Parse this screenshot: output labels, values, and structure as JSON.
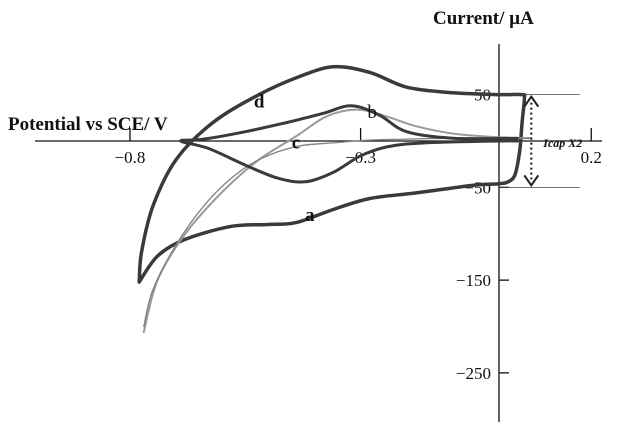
{
  "chart_data": {
    "type": "line",
    "title": "",
    "xlabel": "Potential vs SCE/ V",
    "ylabel": "Current/ µA",
    "xlim": [
      -0.8,
      0.2
    ],
    "ylim": [
      -250,
      100
    ],
    "x_ticks": [
      {
        "value": -0.8,
        "label": "−0.8"
      },
      {
        "value": -0.3,
        "label": "−0.3"
      },
      {
        "value": 0.2,
        "label": "0.2"
      }
    ],
    "y_ticks": [
      {
        "value": 50,
        "label": "50"
      },
      {
        "value": -50,
        "label": "−50"
      },
      {
        "value": -150,
        "label": "−150"
      },
      {
        "value": -250,
        "label": "−250"
      }
    ],
    "grid": false,
    "annotation": {
      "text": "Icap X2",
      "y_from": 50,
      "y_to": -50,
      "x": 0.07
    },
    "series": [
      {
        "name": "a",
        "label_at": [
          -0.41,
          -86
        ],
        "color": "#3a3a3a",
        "width": 3.5,
        "points": [
          [
            -0.78,
            -152
          ],
          [
            -0.74,
            -124
          ],
          [
            -0.68,
            -106
          ],
          [
            -0.58,
            -92
          ],
          [
            -0.5,
            -90
          ],
          [
            -0.44,
            -88
          ],
          [
            -0.36,
            -74
          ],
          [
            -0.28,
            -62
          ],
          [
            -0.18,
            -56
          ],
          [
            -0.06,
            -48
          ],
          [
            0.0,
            -46
          ],
          [
            0.02,
            -44
          ],
          [
            0.035,
            -36
          ],
          [
            0.045,
            -10
          ],
          [
            0.05,
            20
          ],
          [
            0.055,
            46
          ],
          [
            0.05,
            50
          ],
          [
            0.0,
            50
          ],
          [
            -0.1,
            52
          ],
          [
            -0.2,
            58
          ],
          [
            -0.28,
            74
          ],
          [
            -0.36,
            80
          ],
          [
            -0.44,
            68
          ],
          [
            -0.52,
            50
          ],
          [
            -0.62,
            20
          ],
          [
            -0.7,
            -20
          ],
          [
            -0.75,
            -70
          ],
          [
            -0.775,
            -120
          ],
          [
            -0.78,
            -152
          ]
        ]
      },
      {
        "name": "b",
        "label_at": [
          -0.275,
          25
        ],
        "color": "#9a9a9a",
        "width": 2,
        "points": [
          [
            -0.77,
            -206
          ],
          [
            -0.74,
            -150
          ],
          [
            -0.68,
            -100
          ],
          [
            -0.6,
            -55
          ],
          [
            -0.52,
            -20
          ],
          [
            -0.44,
            5
          ],
          [
            -0.38,
            25
          ],
          [
            -0.33,
            33
          ],
          [
            -0.29,
            33
          ],
          [
            -0.24,
            26
          ],
          [
            -0.18,
            16
          ],
          [
            -0.1,
            8
          ],
          [
            0.0,
            4
          ],
          [
            0.07,
            3
          ]
        ]
      },
      {
        "name": "c",
        "label_at": [
          -0.44,
          -8
        ],
        "color": "#808080",
        "width": 1.3,
        "points": [
          [
            -0.77,
            -200
          ],
          [
            -0.75,
            -160
          ],
          [
            -0.7,
            -112
          ],
          [
            -0.64,
            -70
          ],
          [
            -0.58,
            -40
          ],
          [
            -0.52,
            -20
          ],
          [
            -0.44,
            -6
          ],
          [
            -0.36,
            -2
          ],
          [
            -0.28,
            1
          ],
          [
            -0.2,
            2
          ],
          [
            -0.1,
            3
          ],
          [
            0.0,
            3
          ],
          [
            0.07,
            3
          ]
        ]
      },
      {
        "name": "d",
        "label_at": [
          -0.52,
          36
        ],
        "color": "#3a3a3a",
        "width": 3,
        "points": [
          [
            0.04,
            3
          ],
          [
            -0.1,
            3
          ],
          [
            -0.2,
            10
          ],
          [
            -0.26,
            28
          ],
          [
            -0.32,
            38
          ],
          [
            -0.38,
            30
          ],
          [
            -0.46,
            20
          ],
          [
            -0.55,
            10
          ],
          [
            -0.64,
            2
          ],
          [
            -0.69,
            0
          ],
          [
            -0.63,
            -8
          ],
          [
            -0.55,
            -26
          ],
          [
            -0.48,
            -40
          ],
          [
            -0.42,
            -44
          ],
          [
            -0.36,
            -34
          ],
          [
            -0.3,
            -16
          ],
          [
            -0.24,
            -6
          ],
          [
            -0.16,
            -2
          ],
          [
            0.0,
            0
          ],
          [
            0.04,
            0
          ]
        ]
      }
    ]
  }
}
